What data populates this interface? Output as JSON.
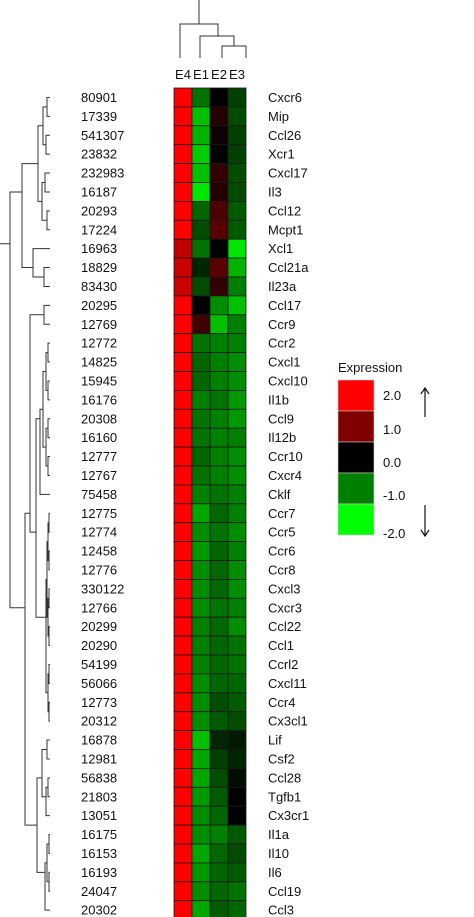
{
  "chart_data": {
    "type": "heatmap",
    "columns": [
      "E4",
      "E1",
      "E2",
      "E3"
    ],
    "legend": {
      "title": "Expression",
      "ticks": [
        "2.0",
        "1.0",
        "0.0",
        "-1.0",
        "-2.0"
      ],
      "scale": [
        {
          "value": 2.0,
          "color": "#ff0000"
        },
        {
          "value": 1.0,
          "color": "#800000"
        },
        {
          "value": 0.0,
          "color": "#000000"
        },
        {
          "value": -1.0,
          "color": "#008000"
        },
        {
          "value": -2.0,
          "color": "#00ff00"
        }
      ],
      "arrows": [
        "up",
        "down"
      ]
    },
    "rows": [
      {
        "id": "80901",
        "gene": "Cxcr6",
        "values": [
          2.0,
          -0.9,
          0.0,
          -0.5
        ]
      },
      {
        "id": "17339",
        "gene": "Mip",
        "values": [
          2.0,
          -1.5,
          0.3,
          -0.6
        ]
      },
      {
        "id": "541307",
        "gene": "Ccl26",
        "values": [
          2.0,
          -1.4,
          0.1,
          -0.5
        ]
      },
      {
        "id": "23832",
        "gene": "Xcr1",
        "values": [
          2.0,
          -1.6,
          0.0,
          -0.5
        ]
      },
      {
        "id": "232983",
        "gene": "Cxcl17",
        "values": [
          2.0,
          -1.5,
          0.4,
          -0.6
        ]
      },
      {
        "id": "16187",
        "gene": "Il3",
        "values": [
          2.0,
          -1.8,
          0.3,
          -0.6
        ]
      },
      {
        "id": "20293",
        "gene": "Ccl12",
        "values": [
          2.0,
          -0.8,
          0.6,
          -0.7
        ]
      },
      {
        "id": "17224",
        "gene": "Mcpt1",
        "values": [
          2.0,
          -0.6,
          0.7,
          -0.7
        ]
      },
      {
        "id": "16963",
        "gene": "Xcl1",
        "values": [
          1.5,
          -0.9,
          0.0,
          -1.8
        ]
      },
      {
        "id": "18829",
        "gene": "Ccl21a",
        "values": [
          1.6,
          -0.3,
          0.7,
          -1.4
        ]
      },
      {
        "id": "83430",
        "gene": "Il23a",
        "values": [
          1.6,
          -0.6,
          0.4,
          -1.0
        ]
      },
      {
        "id": "20295",
        "gene": "Ccl17",
        "values": [
          2.0,
          0.0,
          -1.1,
          -1.5
        ]
      },
      {
        "id": "12769",
        "gene": "Ccr9",
        "values": [
          2.0,
          0.5,
          -1.5,
          -1.0
        ]
      },
      {
        "id": "12772",
        "gene": "Ccr2",
        "values": [
          2.0,
          -0.9,
          -1.0,
          -1.0
        ]
      },
      {
        "id": "14825",
        "gene": "Cxcl1",
        "values": [
          2.0,
          -0.8,
          -1.0,
          -1.1
        ]
      },
      {
        "id": "15945",
        "gene": "Cxcl10",
        "values": [
          2.0,
          -0.8,
          -1.0,
          -1.1
        ]
      },
      {
        "id": "16176",
        "gene": "Il1b",
        "values": [
          2.0,
          -1.0,
          -0.9,
          -1.2
        ]
      },
      {
        "id": "20308",
        "gene": "Ccl9",
        "values": [
          2.0,
          -0.9,
          -1.0,
          -1.2
        ]
      },
      {
        "id": "16160",
        "gene": "Il12b",
        "values": [
          2.0,
          -0.9,
          -1.0,
          -1.0
        ]
      },
      {
        "id": "12777",
        "gene": "Ccr10",
        "values": [
          2.0,
          -0.8,
          -1.0,
          -1.1
        ]
      },
      {
        "id": "12767",
        "gene": "Cxcr4",
        "values": [
          2.0,
          -0.9,
          -1.0,
          -1.1
        ]
      },
      {
        "id": "75458",
        "gene": "Cklf",
        "values": [
          2.0,
          -1.0,
          -0.9,
          -1.0
        ]
      },
      {
        "id": "12775",
        "gene": "Ccr7",
        "values": [
          2.0,
          -1.3,
          -0.8,
          -1.0
        ]
      },
      {
        "id": "12774",
        "gene": "Ccr5",
        "values": [
          2.0,
          -1.1,
          -0.9,
          -1.1
        ]
      },
      {
        "id": "12458",
        "gene": "Ccr6",
        "values": [
          2.0,
          -1.2,
          -0.8,
          -1.0
        ]
      },
      {
        "id": "12776",
        "gene": "Ccr8",
        "values": [
          2.0,
          -1.1,
          -0.8,
          -1.1
        ]
      },
      {
        "id": "330122",
        "gene": "Cxcl3",
        "values": [
          2.0,
          -1.1,
          -0.8,
          -1.1
        ]
      },
      {
        "id": "12766",
        "gene": "Cxcr3",
        "values": [
          2.0,
          -1.1,
          -0.9,
          -1.0
        ]
      },
      {
        "id": "20299",
        "gene": "Ccl22",
        "values": [
          2.0,
          -1.0,
          -0.8,
          -1.1
        ]
      },
      {
        "id": "20290",
        "gene": "Ccl1",
        "values": [
          2.0,
          -1.0,
          -0.8,
          -0.9
        ]
      },
      {
        "id": "54199",
        "gene": "Ccrl2",
        "values": [
          2.0,
          -1.0,
          -0.8,
          -0.9
        ]
      },
      {
        "id": "56066",
        "gene": "Cxcl11",
        "values": [
          2.0,
          -1.1,
          -0.8,
          -0.8
        ]
      },
      {
        "id": "12773",
        "gene": "Ccr4",
        "values": [
          2.0,
          -1.1,
          -0.6,
          -0.7
        ]
      },
      {
        "id": "20312",
        "gene": "Cx3cl1",
        "values": [
          2.0,
          -1.1,
          -0.7,
          -0.6
        ]
      },
      {
        "id": "16878",
        "gene": "Lif",
        "values": [
          2.0,
          -1.5,
          -0.3,
          -0.2
        ]
      },
      {
        "id": "12981",
        "gene": "Csf2",
        "values": [
          2.0,
          -1.3,
          -0.5,
          -0.3
        ]
      },
      {
        "id": "56838",
        "gene": "Ccl28",
        "values": [
          2.0,
          -1.3,
          -0.6,
          -0.1
        ]
      },
      {
        "id": "21803",
        "gene": "Tgfb1",
        "values": [
          2.0,
          -1.2,
          -0.7,
          0.0
        ]
      },
      {
        "id": "13051",
        "gene": "Cx3cr1",
        "values": [
          2.0,
          -1.1,
          -0.8,
          0.0
        ]
      },
      {
        "id": "16175",
        "gene": "Il1a",
        "values": [
          2.0,
          -1.1,
          -1.0,
          -0.7
        ]
      },
      {
        "id": "16153",
        "gene": "Il10",
        "values": [
          2.0,
          -1.3,
          -0.8,
          -0.6
        ]
      },
      {
        "id": "16193",
        "gene": "Il6",
        "values": [
          2.0,
          -1.2,
          -0.8,
          -0.7
        ]
      },
      {
        "id": "24047",
        "gene": "Ccl19",
        "values": [
          2.0,
          -1.1,
          -0.8,
          -0.9
        ]
      },
      {
        "id": "20302",
        "gene": "Ccl3",
        "values": [
          2.0,
          -1.3,
          -0.7,
          -0.8
        ]
      }
    ]
  }
}
